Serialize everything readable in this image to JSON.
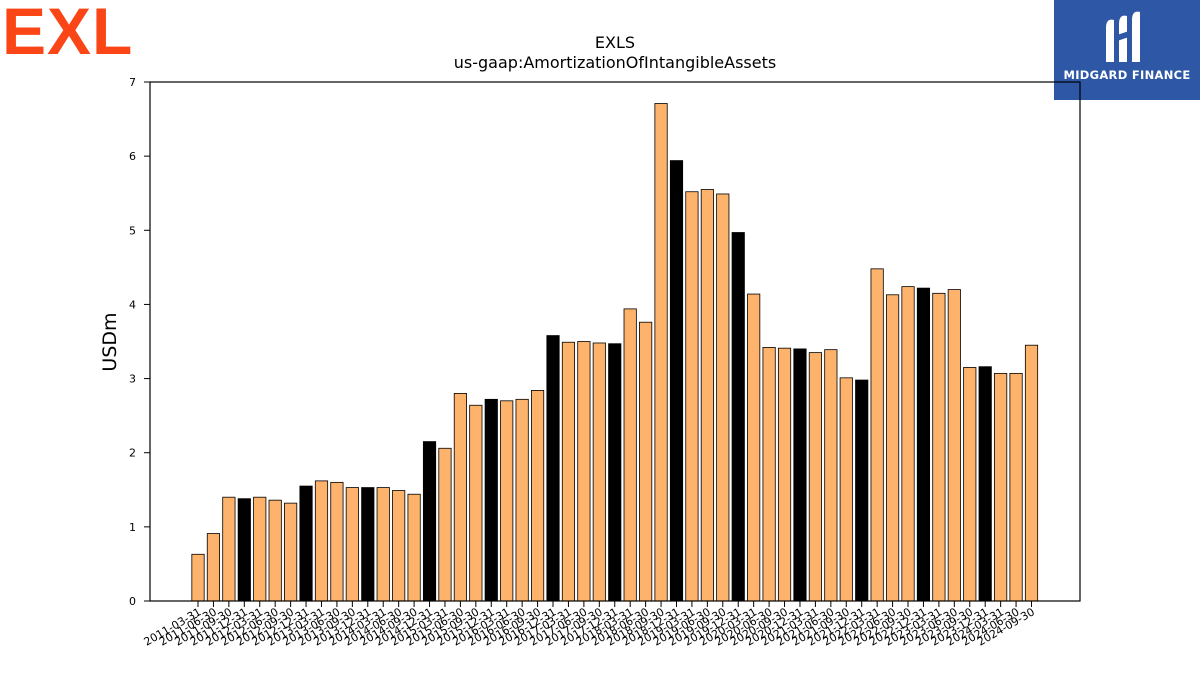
{
  "branding": {
    "left_logo": "EXL",
    "right_logo": "MIDGARD FINANCE"
  },
  "colors": {
    "bar_default": "#fdb36b",
    "bar_highlight": "#000000",
    "bar_edge": "#000000",
    "exl_orange": "#fa4616",
    "midgard_blue": "#2e57a6"
  },
  "chart_data": {
    "type": "bar",
    "title": "EXLS",
    "subtitle": "us-gaap:AmortizationOfIntangibleAssets",
    "xlabel": "",
    "ylabel": "USDm",
    "ylim": [
      0,
      7
    ],
    "yticks": [
      0,
      1,
      2,
      3,
      4,
      5,
      6,
      7
    ],
    "grid": false,
    "categories": [
      "2011-03-31",
      "2011-06-30",
      "2011-09-30",
      "2011-12-31",
      "2012-03-31",
      "2012-06-30",
      "2012-09-30",
      "2012-12-31",
      "2013-03-31",
      "2013-06-30",
      "2013-09-30",
      "2013-12-31",
      "2014-03-31",
      "2014-06-30",
      "2014-09-30",
      "2014-12-31",
      "2015-03-31",
      "2015-06-30",
      "2015-09-30",
      "2015-12-31",
      "2016-03-31",
      "2016-06-30",
      "2016-09-30",
      "2016-12-31",
      "2017-03-31",
      "2017-06-30",
      "2017-09-30",
      "2017-12-31",
      "2018-03-31",
      "2018-06-30",
      "2018-09-30",
      "2018-12-31",
      "2019-03-31",
      "2019-06-30",
      "2019-09-30",
      "2019-12-31",
      "2020-03-31",
      "2020-06-30",
      "2020-09-30",
      "2020-12-31",
      "2021-03-31",
      "2021-06-30",
      "2021-09-30",
      "2021-12-31",
      "2022-03-31",
      "2022-06-30",
      "2022-09-30",
      "2022-12-31",
      "2023-03-31",
      "2023-06-30",
      "2023-09-30",
      "2023-12-31",
      "2024-03-31",
      "2024-06-30",
      "2024-09-30"
    ],
    "values": [
      0.63,
      0.91,
      1.4,
      1.38,
      1.4,
      1.36,
      1.32,
      1.55,
      1.62,
      1.6,
      1.53,
      1.53,
      1.53,
      1.49,
      1.44,
      2.15,
      2.06,
      2.8,
      2.64,
      2.72,
      2.7,
      2.72,
      2.84,
      3.58,
      3.49,
      3.5,
      3.48,
      3.47,
      3.94,
      3.76,
      6.71,
      5.94,
      5.52,
      5.55,
      5.49,
      4.97,
      4.14,
      3.42,
      3.41,
      3.4,
      3.35,
      3.39,
      3.01,
      2.98,
      4.48,
      4.13,
      4.24,
      4.22,
      4.15,
      4.2,
      3.15,
      3.16,
      3.07,
      3.07,
      3.45
    ],
    "highlighted": [
      false,
      false,
      false,
      true,
      false,
      false,
      false,
      true,
      false,
      false,
      false,
      true,
      false,
      false,
      false,
      true,
      false,
      false,
      false,
      true,
      false,
      false,
      false,
      true,
      false,
      false,
      false,
      true,
      false,
      false,
      false,
      true,
      false,
      false,
      false,
      true,
      false,
      false,
      false,
      true,
      false,
      false,
      false,
      true,
      false,
      false,
      false,
      true,
      false,
      false,
      false,
      true,
      false,
      false,
      false
    ]
  }
}
